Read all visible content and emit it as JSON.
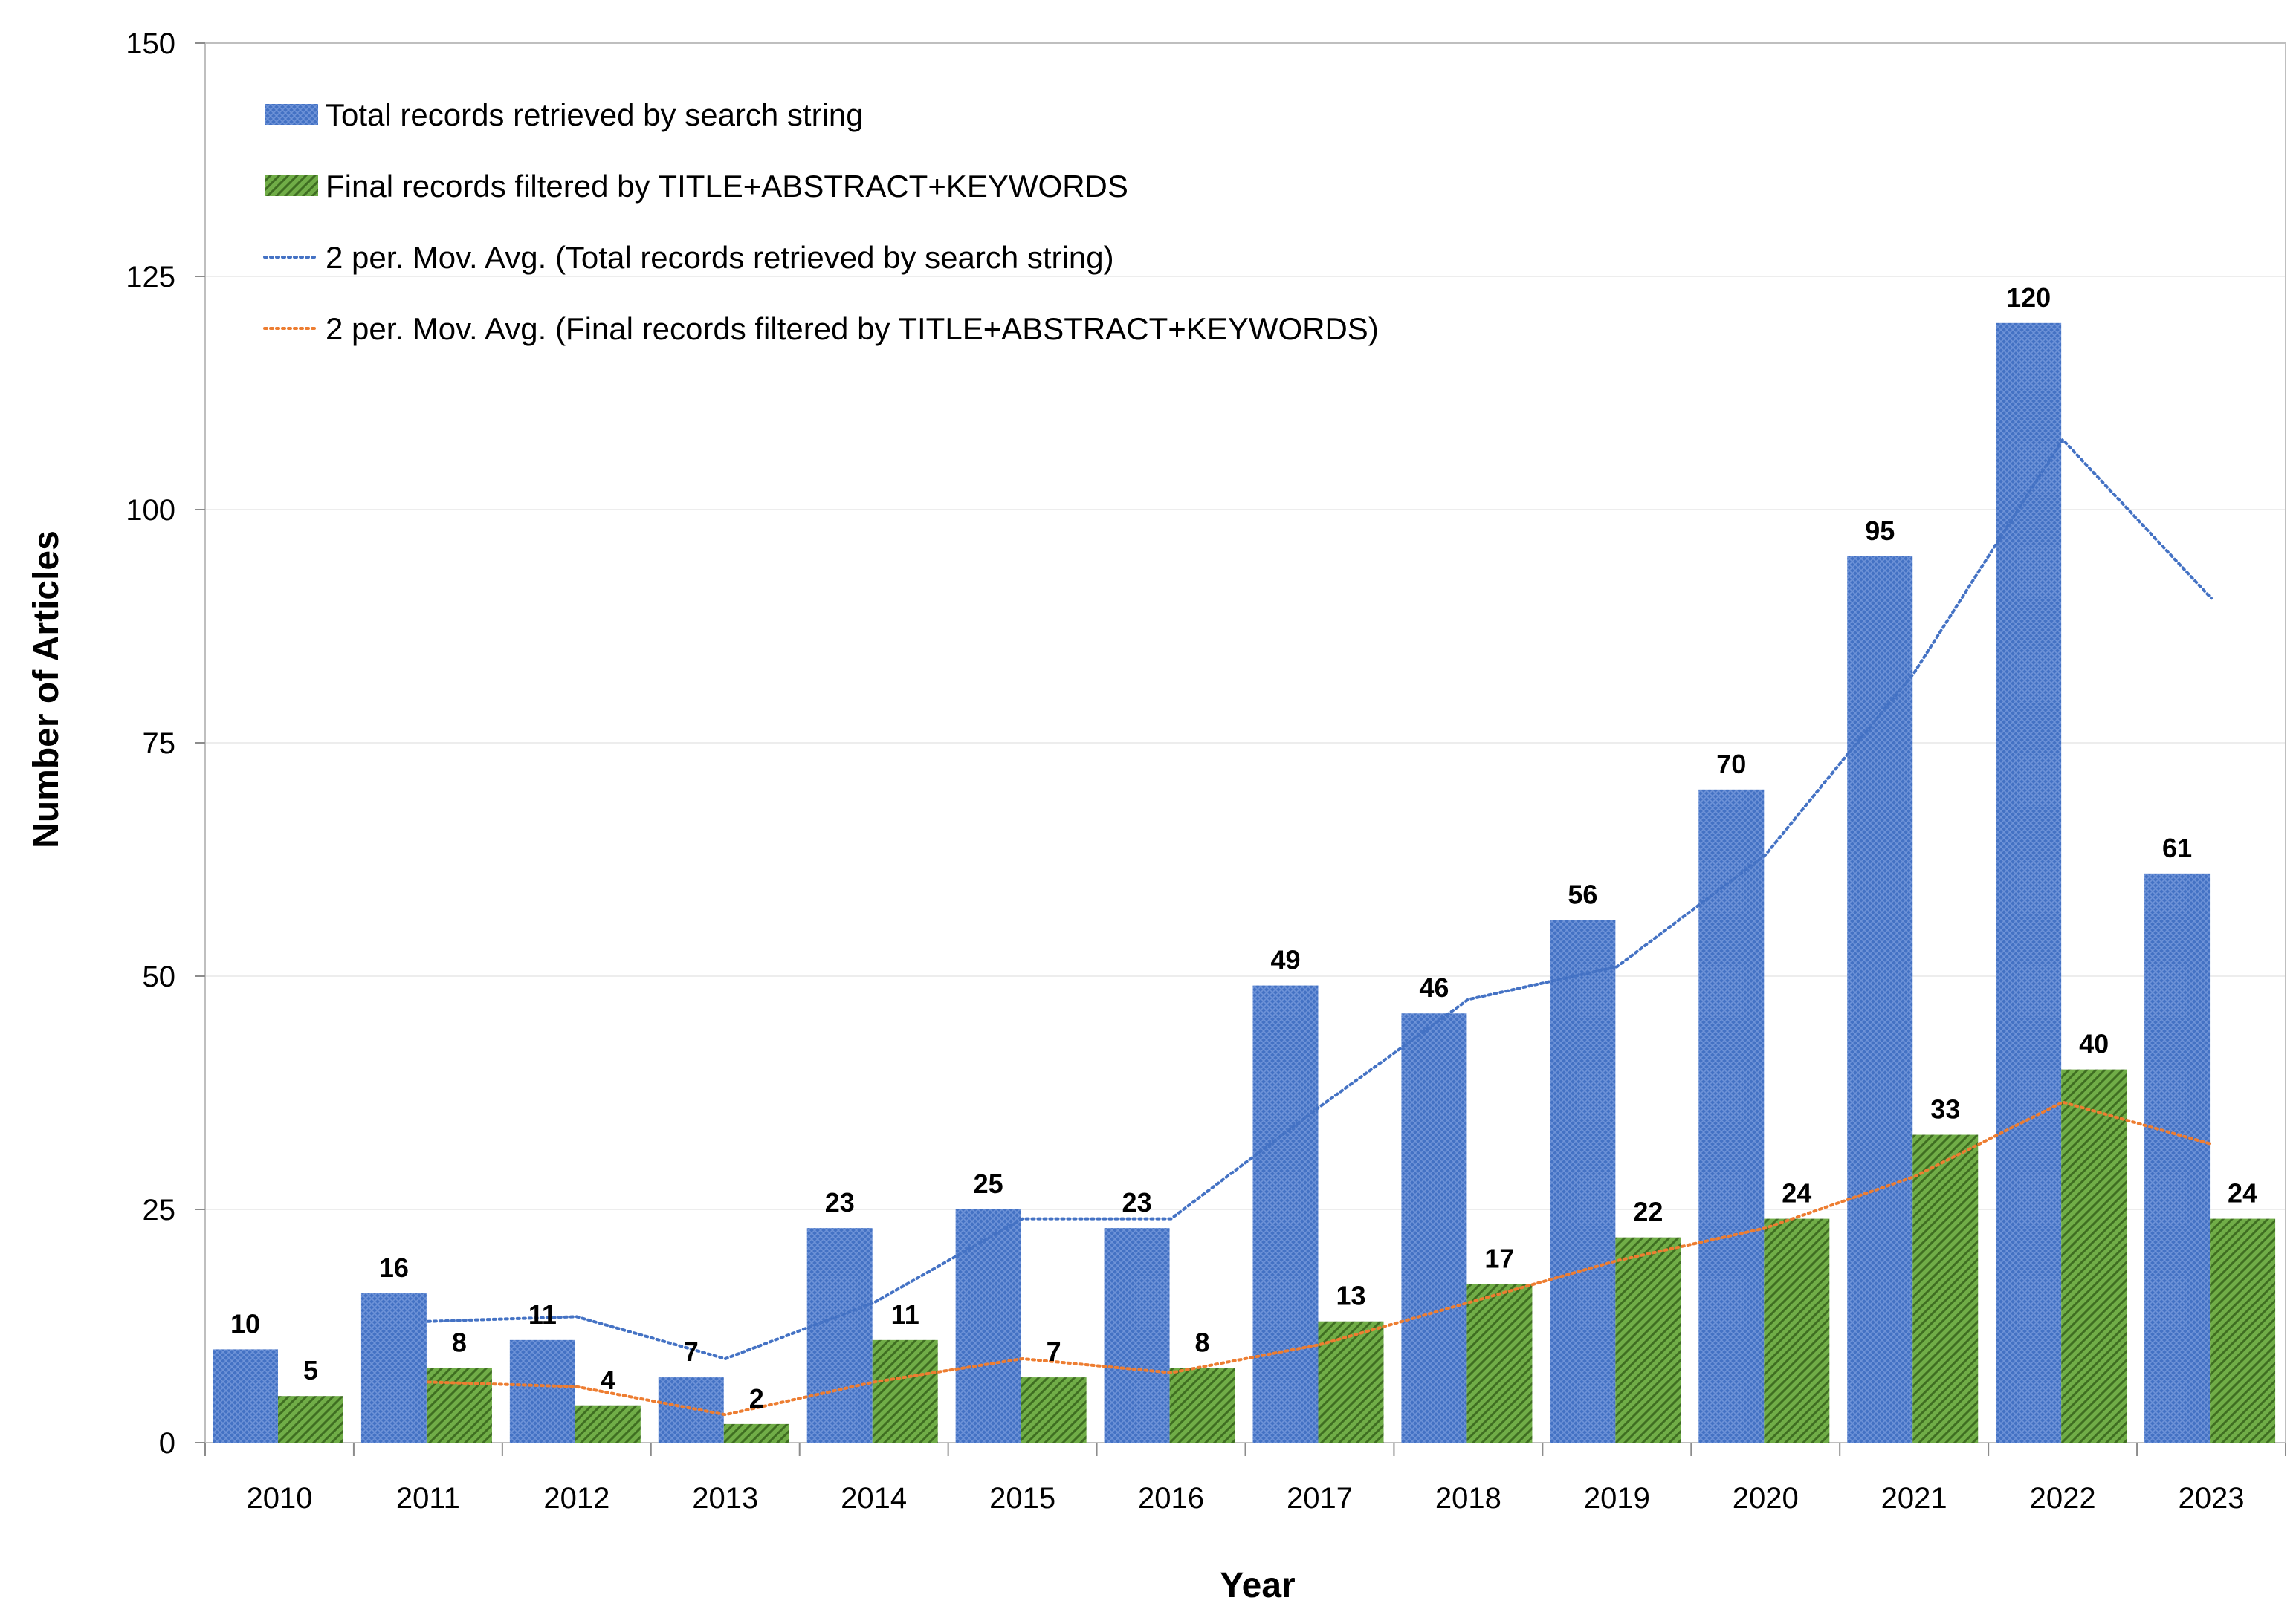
{
  "chart_data": {
    "type": "bar",
    "title": "",
    "xlabel": "Year",
    "ylabel": "Number of Articles",
    "ylim": [
      0,
      150
    ],
    "yticks": [
      0,
      25,
      50,
      75,
      100,
      125,
      150
    ],
    "grid": true,
    "legend_position": "top-left",
    "categories": [
      "2010",
      "2011",
      "2012",
      "2013",
      "2014",
      "2015",
      "2016",
      "2017",
      "2018",
      "2019",
      "2020",
      "2021",
      "2022",
      "2023"
    ],
    "series": [
      {
        "name": "Total records retrieved by search string",
        "kind": "bar",
        "color": "#4472C4",
        "values": [
          10,
          16,
          11,
          7,
          23,
          25,
          23,
          49,
          46,
          56,
          70,
          95,
          120,
          61
        ]
      },
      {
        "name": "Final records filtered by TITLE+ABSTRACT+KEYWORDS",
        "kind": "bar",
        "color": "#70AD47",
        "values": [
          5,
          8,
          4,
          2,
          11,
          7,
          8,
          13,
          17,
          22,
          24,
          33,
          40,
          24
        ]
      }
    ],
    "trendlines": [
      {
        "name": "2 per. Mov. Avg. (Total records retrieved by search string)",
        "kind": "moving-average",
        "period": 2,
        "of_series": 0,
        "color": "#4472C4",
        "values": [
          null,
          13,
          13.5,
          9,
          15,
          24,
          24,
          36,
          47.5,
          51,
          63,
          82.5,
          107.5,
          90.5
        ]
      },
      {
        "name": "2 per. Mov. Avg. (Final records filtered by TITLE+ABSTRACT+KEYWORDS)",
        "kind": "moving-average",
        "period": 2,
        "of_series": 1,
        "color": "#ED7D31",
        "values": [
          null,
          6.5,
          6,
          3,
          6.5,
          9,
          7.5,
          10.5,
          15,
          19.5,
          23,
          28.5,
          36.5,
          32
        ]
      }
    ]
  }
}
